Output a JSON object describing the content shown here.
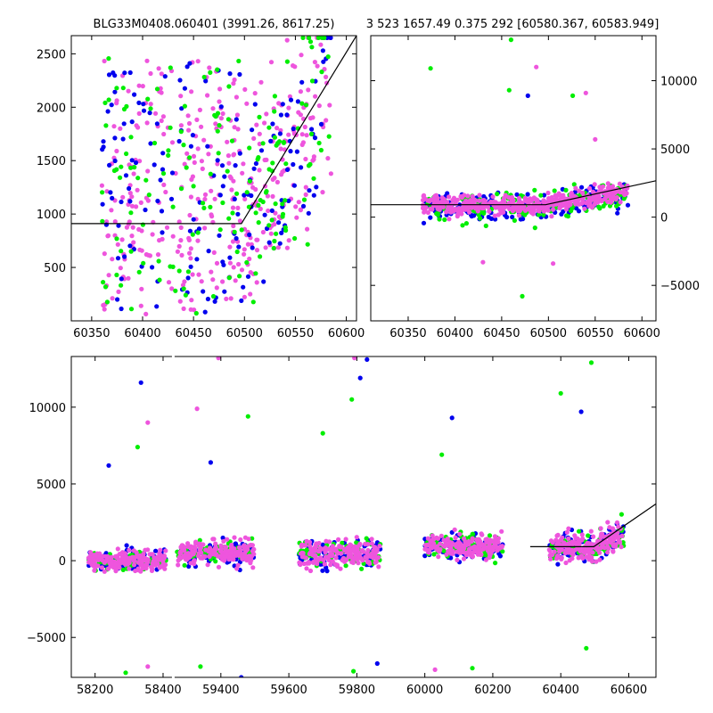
{
  "title_left": "BLG33M0408.060401 (3991.26, 8617.25)",
  "title_right": "3 523 1657.49 0.375 292 [60580.367, 60583.949]",
  "colors": {
    "blue": "#0000ee",
    "green": "#00ee00",
    "magenta": "#ee55dd",
    "model": "#000000"
  },
  "chart_data": [
    {
      "type": "scatter",
      "panel": "top-left",
      "xlim": [
        60330,
        60610
      ],
      "ylim": [
        0,
        2670
      ],
      "xticks": [
        60350,
        60400,
        60450,
        60500,
        60550,
        60600
      ],
      "yticks": [
        500,
        1000,
        1500,
        2000,
        2500
      ],
      "ytick_side": "left",
      "model_line": {
        "x": [
          60330,
          60497,
          60610
        ],
        "y": [
          910,
          910,
          2670
        ]
      },
      "series": [
        {
          "color": "magenta",
          "x_range": [
            60360,
            60585
          ],
          "y_range": [
            30,
            2650
          ],
          "n": 380
        },
        {
          "color": "blue",
          "x_range": [
            60360,
            60585
          ],
          "y_range": [
            30,
            2650
          ],
          "n": 170
        },
        {
          "color": "green",
          "x_range": [
            60360,
            60585
          ],
          "y_range": [
            30,
            2650
          ],
          "n": 160
        }
      ]
    },
    {
      "type": "scatter",
      "panel": "top-right",
      "xlim": [
        60310,
        60615
      ],
      "ylim": [
        -7600,
        13300
      ],
      "xticks": [
        60350,
        60400,
        60450,
        60500,
        60550,
        60600
      ],
      "yticks": [
        -5000,
        0,
        5000,
        10000
      ],
      "ytick_side": "right",
      "model_line": {
        "x": [
          60310,
          60497,
          60615
        ],
        "y": [
          910,
          910,
          2670
        ]
      },
      "outliers": [
        {
          "x": 60374,
          "y": 10900,
          "color": "green"
        },
        {
          "x": 60460,
          "y": 13000,
          "color": "green"
        },
        {
          "x": 60458,
          "y": 9300,
          "color": "green"
        },
        {
          "x": 60478,
          "y": 8900,
          "color": "blue"
        },
        {
          "x": 60487,
          "y": 11000,
          "color": "magenta"
        },
        {
          "x": 60472,
          "y": -5800,
          "color": "green"
        },
        {
          "x": 60430,
          "y": -3300,
          "color": "magenta"
        },
        {
          "x": 60526,
          "y": 8900,
          "color": "green"
        },
        {
          "x": 60540,
          "y": 9100,
          "color": "magenta"
        },
        {
          "x": 60550,
          "y": 5700,
          "color": "magenta"
        },
        {
          "x": 60505,
          "y": -3400,
          "color": "magenta"
        }
      ],
      "series": [
        {
          "color": "blue",
          "x_range": [
            60365,
            60585
          ],
          "center": 700,
          "spread": 900,
          "n": 220
        },
        {
          "color": "green",
          "x_range": [
            60365,
            60585
          ],
          "center": 800,
          "spread": 1100,
          "n": 160
        },
        {
          "color": "magenta",
          "x_range": [
            60365,
            60585
          ],
          "center": 900,
          "spread": 700,
          "n": 420
        }
      ]
    },
    {
      "type": "scatter",
      "panel": "bottom",
      "xlim": [
        58130,
        60680
      ],
      "ylim": [
        -7600,
        13300
      ],
      "xticks": [
        58200,
        58400,
        59400,
        59600,
        59800,
        60000,
        60200,
        60400,
        60600
      ],
      "yticks": [
        -5000,
        0,
        5000,
        10000
      ],
      "ytick_side": "left",
      "axis_break_x": [
        58430,
        59260
      ],
      "model_line": {
        "x": [
          60310,
          60497,
          60680
        ],
        "y": [
          910,
          910,
          3700
        ]
      },
      "seasons": [
        {
          "x_range": [
            58180,
            58410
          ],
          "center": 0,
          "spread": 600
        },
        {
          "x_range": [
            59270,
            59500
          ],
          "center": 500,
          "spread": 700
        },
        {
          "x_range": [
            59630,
            59870
          ],
          "center": 500,
          "spread": 800
        },
        {
          "x_range": [
            60000,
            60230
          ],
          "center": 900,
          "spread": 700
        },
        {
          "x_range": [
            60365,
            60585
          ],
          "center": 900,
          "spread": 900
        }
      ],
      "outliers": [
        {
          "x": 58335,
          "y": 11600,
          "color": "blue"
        },
        {
          "x": 58355,
          "y": 9000,
          "color": "magenta"
        },
        {
          "x": 58325,
          "y": 7400,
          "color": "green"
        },
        {
          "x": 58240,
          "y": 6200,
          "color": "blue"
        },
        {
          "x": 58290,
          "y": -7300,
          "color": "green"
        },
        {
          "x": 58355,
          "y": -6900,
          "color": "magenta"
        },
        {
          "x": 59393,
          "y": 13200,
          "color": "magenta"
        },
        {
          "x": 59330,
          "y": 9900,
          "color": "magenta"
        },
        {
          "x": 59480,
          "y": 9400,
          "color": "green"
        },
        {
          "x": 59370,
          "y": 6400,
          "color": "blue"
        },
        {
          "x": 59340,
          "y": -6900,
          "color": "green"
        },
        {
          "x": 59460,
          "y": -7600,
          "color": "blue"
        },
        {
          "x": 59700,
          "y": 8300,
          "color": "green"
        },
        {
          "x": 59785,
          "y": 10500,
          "color": "green"
        },
        {
          "x": 59793,
          "y": 13200,
          "color": "magenta"
        },
        {
          "x": 59810,
          "y": 11900,
          "color": "blue"
        },
        {
          "x": 59830,
          "y": 13100,
          "color": "blue"
        },
        {
          "x": 59790,
          "y": -7200,
          "color": "green"
        },
        {
          "x": 59860,
          "y": -6700,
          "color": "blue"
        },
        {
          "x": 60080,
          "y": 9300,
          "color": "blue"
        },
        {
          "x": 60050,
          "y": 6900,
          "color": "green"
        },
        {
          "x": 60030,
          "y": -7100,
          "color": "magenta"
        },
        {
          "x": 60140,
          "y": -7000,
          "color": "green"
        },
        {
          "x": 60400,
          "y": 10900,
          "color": "green"
        },
        {
          "x": 60460,
          "y": 9700,
          "color": "blue"
        },
        {
          "x": 60490,
          "y": 12900,
          "color": "green"
        },
        {
          "x": 60475,
          "y": -5700,
          "color": "green"
        }
      ],
      "series": [
        {
          "color": "blue",
          "n_per_season": 90
        },
        {
          "color": "green",
          "n_per_season": 70
        },
        {
          "color": "magenta",
          "n_per_season": 170
        }
      ]
    }
  ]
}
